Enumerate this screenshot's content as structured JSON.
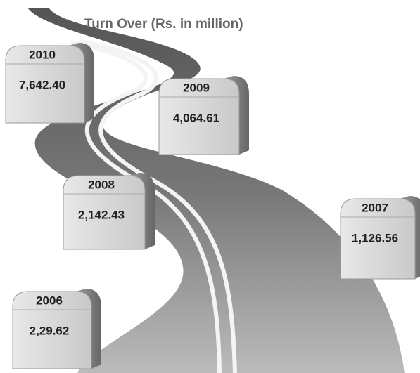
{
  "title": "Turn Over (Rs. in million)",
  "milestones": [
    {
      "year": "2010",
      "value": "7,642.40"
    },
    {
      "year": "2009",
      "value": "4,064.61"
    },
    {
      "year": "2008",
      "value": "2,142.43"
    },
    {
      "year": "2007",
      "value": "1,126.56"
    },
    {
      "year": "2006",
      "value": "2,29.62"
    }
  ]
}
